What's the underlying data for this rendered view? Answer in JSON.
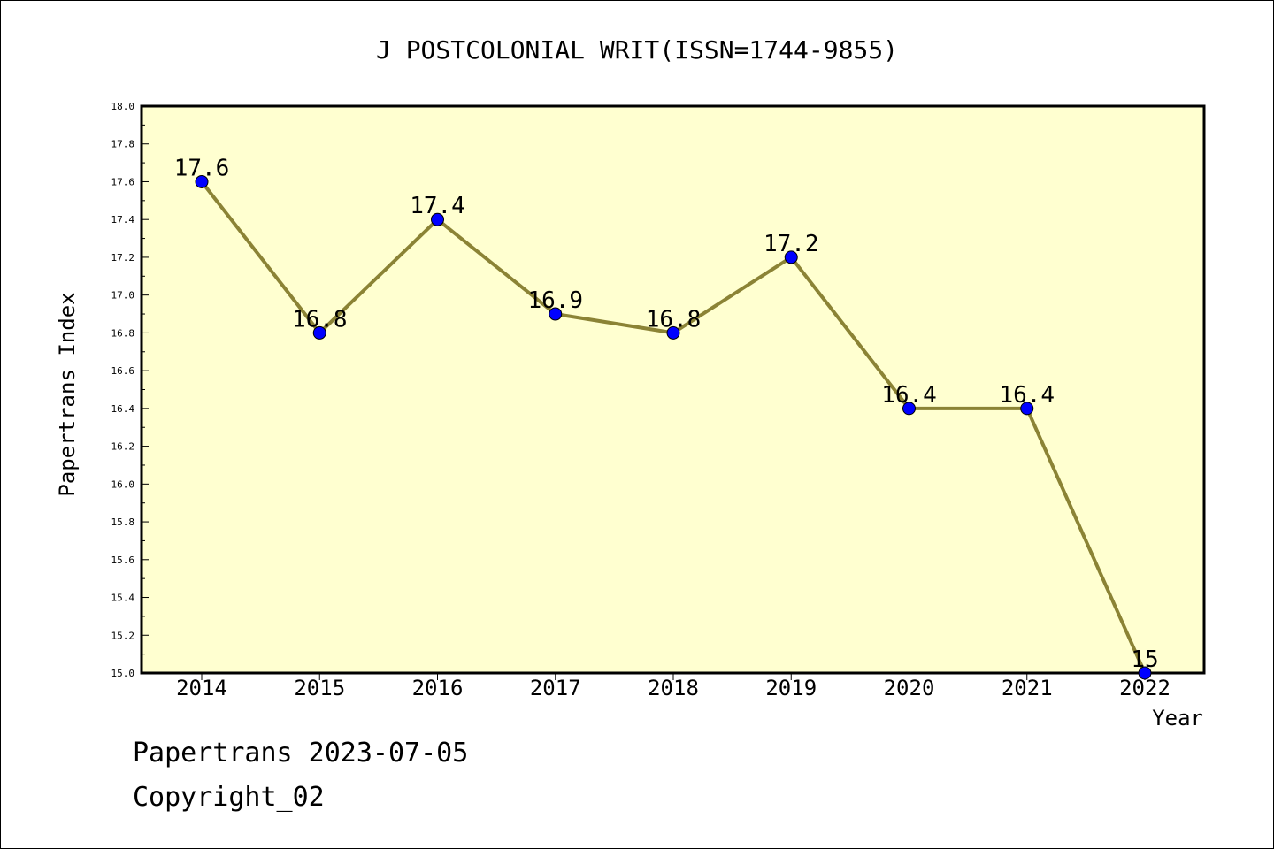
{
  "chart_data": {
    "type": "line",
    "title": "J POSTCOLONIAL WRIT(ISSN=1744-9855)",
    "xlabel": "Year",
    "ylabel": "Papertrans Index",
    "categories": [
      "2014",
      "2015",
      "2016",
      "2017",
      "2018",
      "2019",
      "2020",
      "2021",
      "2022"
    ],
    "values": [
      17.6,
      16.8,
      17.4,
      16.9,
      16.8,
      17.2,
      16.4,
      16.4,
      15
    ],
    "data_labels": [
      "17.6",
      "16.8",
      "17.4",
      "16.9",
      "16.8",
      "17.2",
      "16.4",
      "16.4",
      "15"
    ],
    "ylim": [
      15.0,
      18.0
    ],
    "yticks": [
      "15.0",
      "15.2",
      "15.4",
      "15.6",
      "15.8",
      "16.0",
      "16.2",
      "16.4",
      "16.6",
      "16.8",
      "17.0",
      "17.2",
      "17.4",
      "17.6",
      "17.8",
      "18.0"
    ],
    "grid": false,
    "legend": "none",
    "colors": {
      "plot_background": "#ffffd0",
      "line": "#8b8335",
      "marker": "#0000ff"
    }
  },
  "footer": {
    "line1": "Papertrans 2023-07-05",
    "line2": "Copyright_02"
  }
}
